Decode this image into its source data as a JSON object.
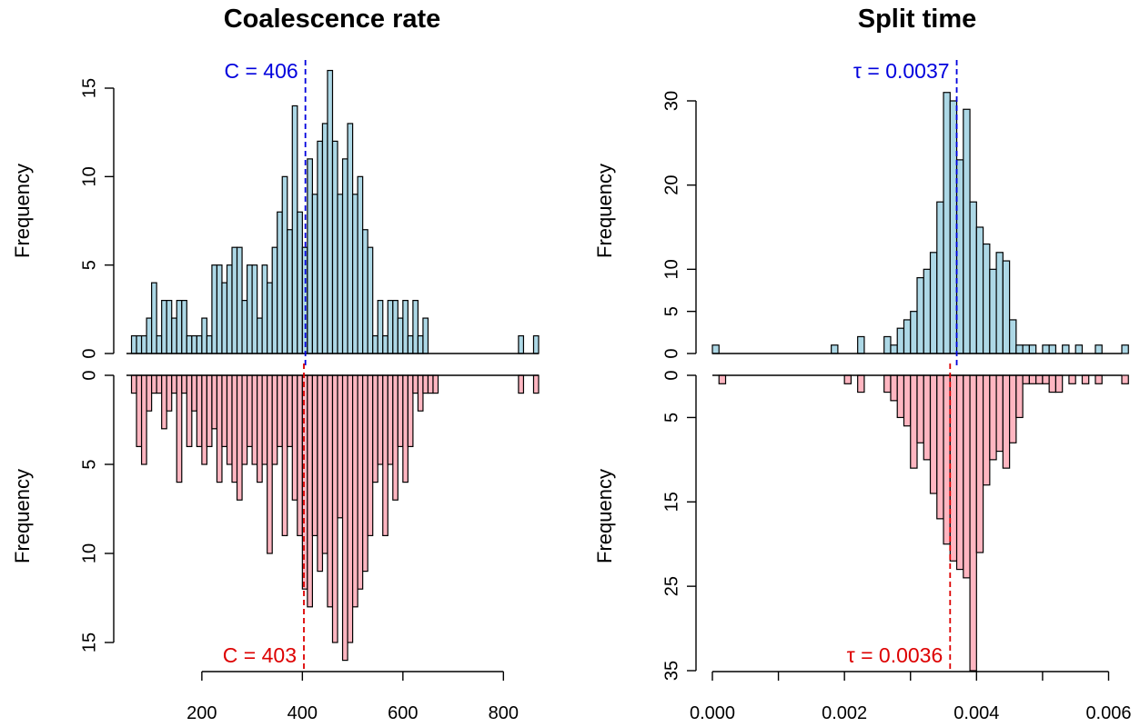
{
  "chart_data": [
    {
      "type": "bar",
      "title": "Coalescence rate",
      "ylabel": "Frequency",
      "xlabel": "",
      "xlim": [
        50,
        870
      ],
      "xticks": [
        200,
        400,
        600,
        800
      ],
      "xtick_labels": [
        "200",
        "400",
        "600",
        "800"
      ],
      "bin_start": 60,
      "bin_width": 10,
      "top": {
        "color": "#add8e6",
        "ylim": [
          0,
          16
        ],
        "yticks": [
          0,
          5,
          10,
          15
        ],
        "ytick_labels": [
          "0",
          "5",
          "10",
          "15"
        ],
        "values": [
          1,
          1,
          1,
          2,
          4,
          1,
          3,
          3,
          2,
          3,
          3,
          1,
          1,
          1,
          2,
          1,
          5,
          5,
          4,
          5,
          6,
          6,
          3,
          5,
          5,
          2,
          5,
          4,
          6,
          8,
          10,
          7,
          14,
          8,
          6,
          11,
          9,
          12,
          13,
          16,
          12,
          9,
          11,
          13,
          9,
          10,
          7,
          6,
          1,
          3,
          1,
          3,
          3,
          2,
          3,
          1,
          3,
          1,
          2,
          0,
          0,
          0,
          0,
          0,
          0,
          0,
          0,
          0,
          0,
          0,
          0,
          0,
          0,
          0,
          0,
          0,
          0,
          0,
          0,
          0,
          0
        ],
        "extra_bins": [
          {
            "x": 830,
            "value": 1
          },
          {
            "x": 860,
            "value": 1
          }
        ],
        "median_label": "C = 406",
        "median": 406,
        "median_color": "#0000dd"
      },
      "bottom": {
        "color": "#ffb6c1",
        "ylim": [
          0,
          16
        ],
        "yticks": [
          0,
          5,
          10,
          15
        ],
        "ytick_labels": [
          "0",
          "5",
          "10",
          "15"
        ],
        "values": [
          1,
          4,
          5,
          2,
          1,
          1,
          3,
          2,
          1,
          6,
          1,
          4,
          2,
          4,
          5,
          4,
          3,
          6,
          4,
          5,
          6,
          7,
          5,
          4,
          5,
          6,
          5,
          10,
          5,
          4,
          9,
          4,
          7,
          9,
          12,
          13,
          9,
          11,
          10,
          13,
          15,
          8,
          16,
          15,
          13,
          12,
          11,
          9,
          6,
          5,
          9,
          5,
          7,
          4,
          6,
          4,
          1,
          2,
          1,
          1,
          1
        ],
        "extra_bins": [
          {
            "x": 830,
            "value": 1
          },
          {
            "x": 860,
            "value": 1
          }
        ],
        "median_label": "C = 403",
        "median": 403,
        "median_color": "#dd0000"
      }
    },
    {
      "type": "bar",
      "title": "Split time",
      "ylabel": "Frequency",
      "xlabel": "",
      "xlim": [
        0,
        0.0062
      ],
      "xticks": [
        0.0,
        0.001,
        0.002,
        0.003,
        0.004,
        0.005,
        0.006
      ],
      "xtick_labels": [
        "0.000",
        "",
        "0.002",
        "",
        "0.004",
        "",
        "0.006"
      ],
      "bin_start": 0,
      "bin_width": 0.0001,
      "top": {
        "color": "#add8e6",
        "ylim": [
          0,
          35
        ],
        "yticks": [
          0,
          5,
          10,
          20,
          30
        ],
        "ytick_labels": [
          "0",
          "5",
          "10",
          "20",
          "30"
        ],
        "values": [
          1,
          0,
          0,
          0,
          0,
          0,
          0,
          0,
          0,
          0,
          0,
          0,
          0,
          0,
          0,
          0,
          0,
          0,
          1,
          0,
          0,
          0,
          2,
          0,
          0,
          0,
          2,
          1,
          3,
          4,
          5,
          9,
          10,
          12,
          18,
          31,
          30,
          23,
          29,
          18,
          15,
          13,
          10,
          12,
          11,
          4,
          1,
          1,
          1,
          0,
          1,
          1,
          0,
          1,
          0,
          1,
          0,
          0,
          1,
          0,
          0,
          0,
          1
        ],
        "median_label": "τ = 0.0037",
        "median": 0.0037,
        "median_color": "#0000dd"
      },
      "bottom": {
        "color": "#ffb6c1",
        "ylim": [
          0,
          35
        ],
        "yticks": [
          0,
          5,
          15,
          25,
          35
        ],
        "ytick_labels": [
          "0",
          "5",
          "15",
          "25",
          "35"
        ],
        "values": [
          0,
          1,
          0,
          0,
          0,
          0,
          0,
          0,
          0,
          0,
          0,
          0,
          0,
          0,
          0,
          0,
          0,
          0,
          0,
          0,
          1,
          0,
          2,
          0,
          0,
          0,
          2,
          3,
          5,
          6,
          11,
          8,
          10,
          14,
          17,
          20,
          22,
          23,
          24,
          35,
          21,
          13,
          10,
          9,
          11,
          8,
          5,
          1,
          1,
          1,
          1,
          2,
          2,
          0,
          1,
          0,
          1,
          0,
          1,
          0,
          0,
          0,
          1
        ],
        "median_label": "τ = 0.0036",
        "median": 0.0036,
        "median_color": "#dd0000"
      }
    }
  ]
}
